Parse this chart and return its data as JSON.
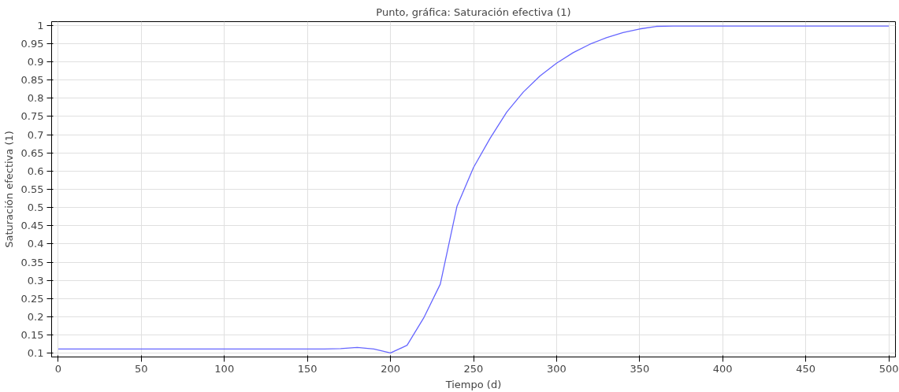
{
  "chart_data": {
    "type": "line",
    "title": "Punto, gráfica: Saturación efectiva (1)",
    "xlabel": "Tiempo (d)",
    "ylabel": "Saturación efectiva (1)",
    "x": [
      0,
      10,
      20,
      30,
      40,
      50,
      60,
      70,
      80,
      90,
      100,
      110,
      120,
      130,
      140,
      150,
      160,
      170,
      180,
      190,
      200,
      210,
      220,
      230,
      240,
      250,
      260,
      270,
      280,
      290,
      300,
      310,
      320,
      330,
      340,
      350,
      360,
      370,
      380,
      390,
      400,
      410,
      420,
      430,
      440,
      450,
      460,
      470,
      480,
      490,
      500
    ],
    "series": [
      {
        "color": "#6666ff",
        "values": [
          0.112,
          0.112,
          0.112,
          0.112,
          0.112,
          0.112,
          0.112,
          0.112,
          0.112,
          0.112,
          0.112,
          0.112,
          0.112,
          0.112,
          0.112,
          0.112,
          0.112,
          0.113,
          0.116,
          0.112,
          0.101,
          0.122,
          0.197,
          0.29,
          0.503,
          0.61,
          0.69,
          0.762,
          0.817,
          0.861,
          0.896,
          0.925,
          0.948,
          0.966,
          0.98,
          0.99,
          0.997,
          0.998,
          0.998,
          0.998,
          0.998,
          0.998,
          0.998,
          0.998,
          0.998,
          0.998,
          0.998,
          0.998,
          0.998,
          0.998,
          0.998
        ]
      }
    ],
    "xlim": [
      -4,
      504
    ],
    "ylim": [
      0.09,
      1.01
    ],
    "xticks": [
      0,
      50,
      100,
      150,
      200,
      250,
      300,
      350,
      400,
      450,
      500
    ],
    "yticks": [
      0.1,
      0.15,
      0.2,
      0.25,
      0.3,
      0.35,
      0.4,
      0.45,
      0.5,
      0.55,
      0.6,
      0.65,
      0.7,
      0.75,
      0.8,
      0.85,
      0.9,
      0.95,
      1
    ],
    "grid": true,
    "marker": "none",
    "line_style": "solid"
  }
}
